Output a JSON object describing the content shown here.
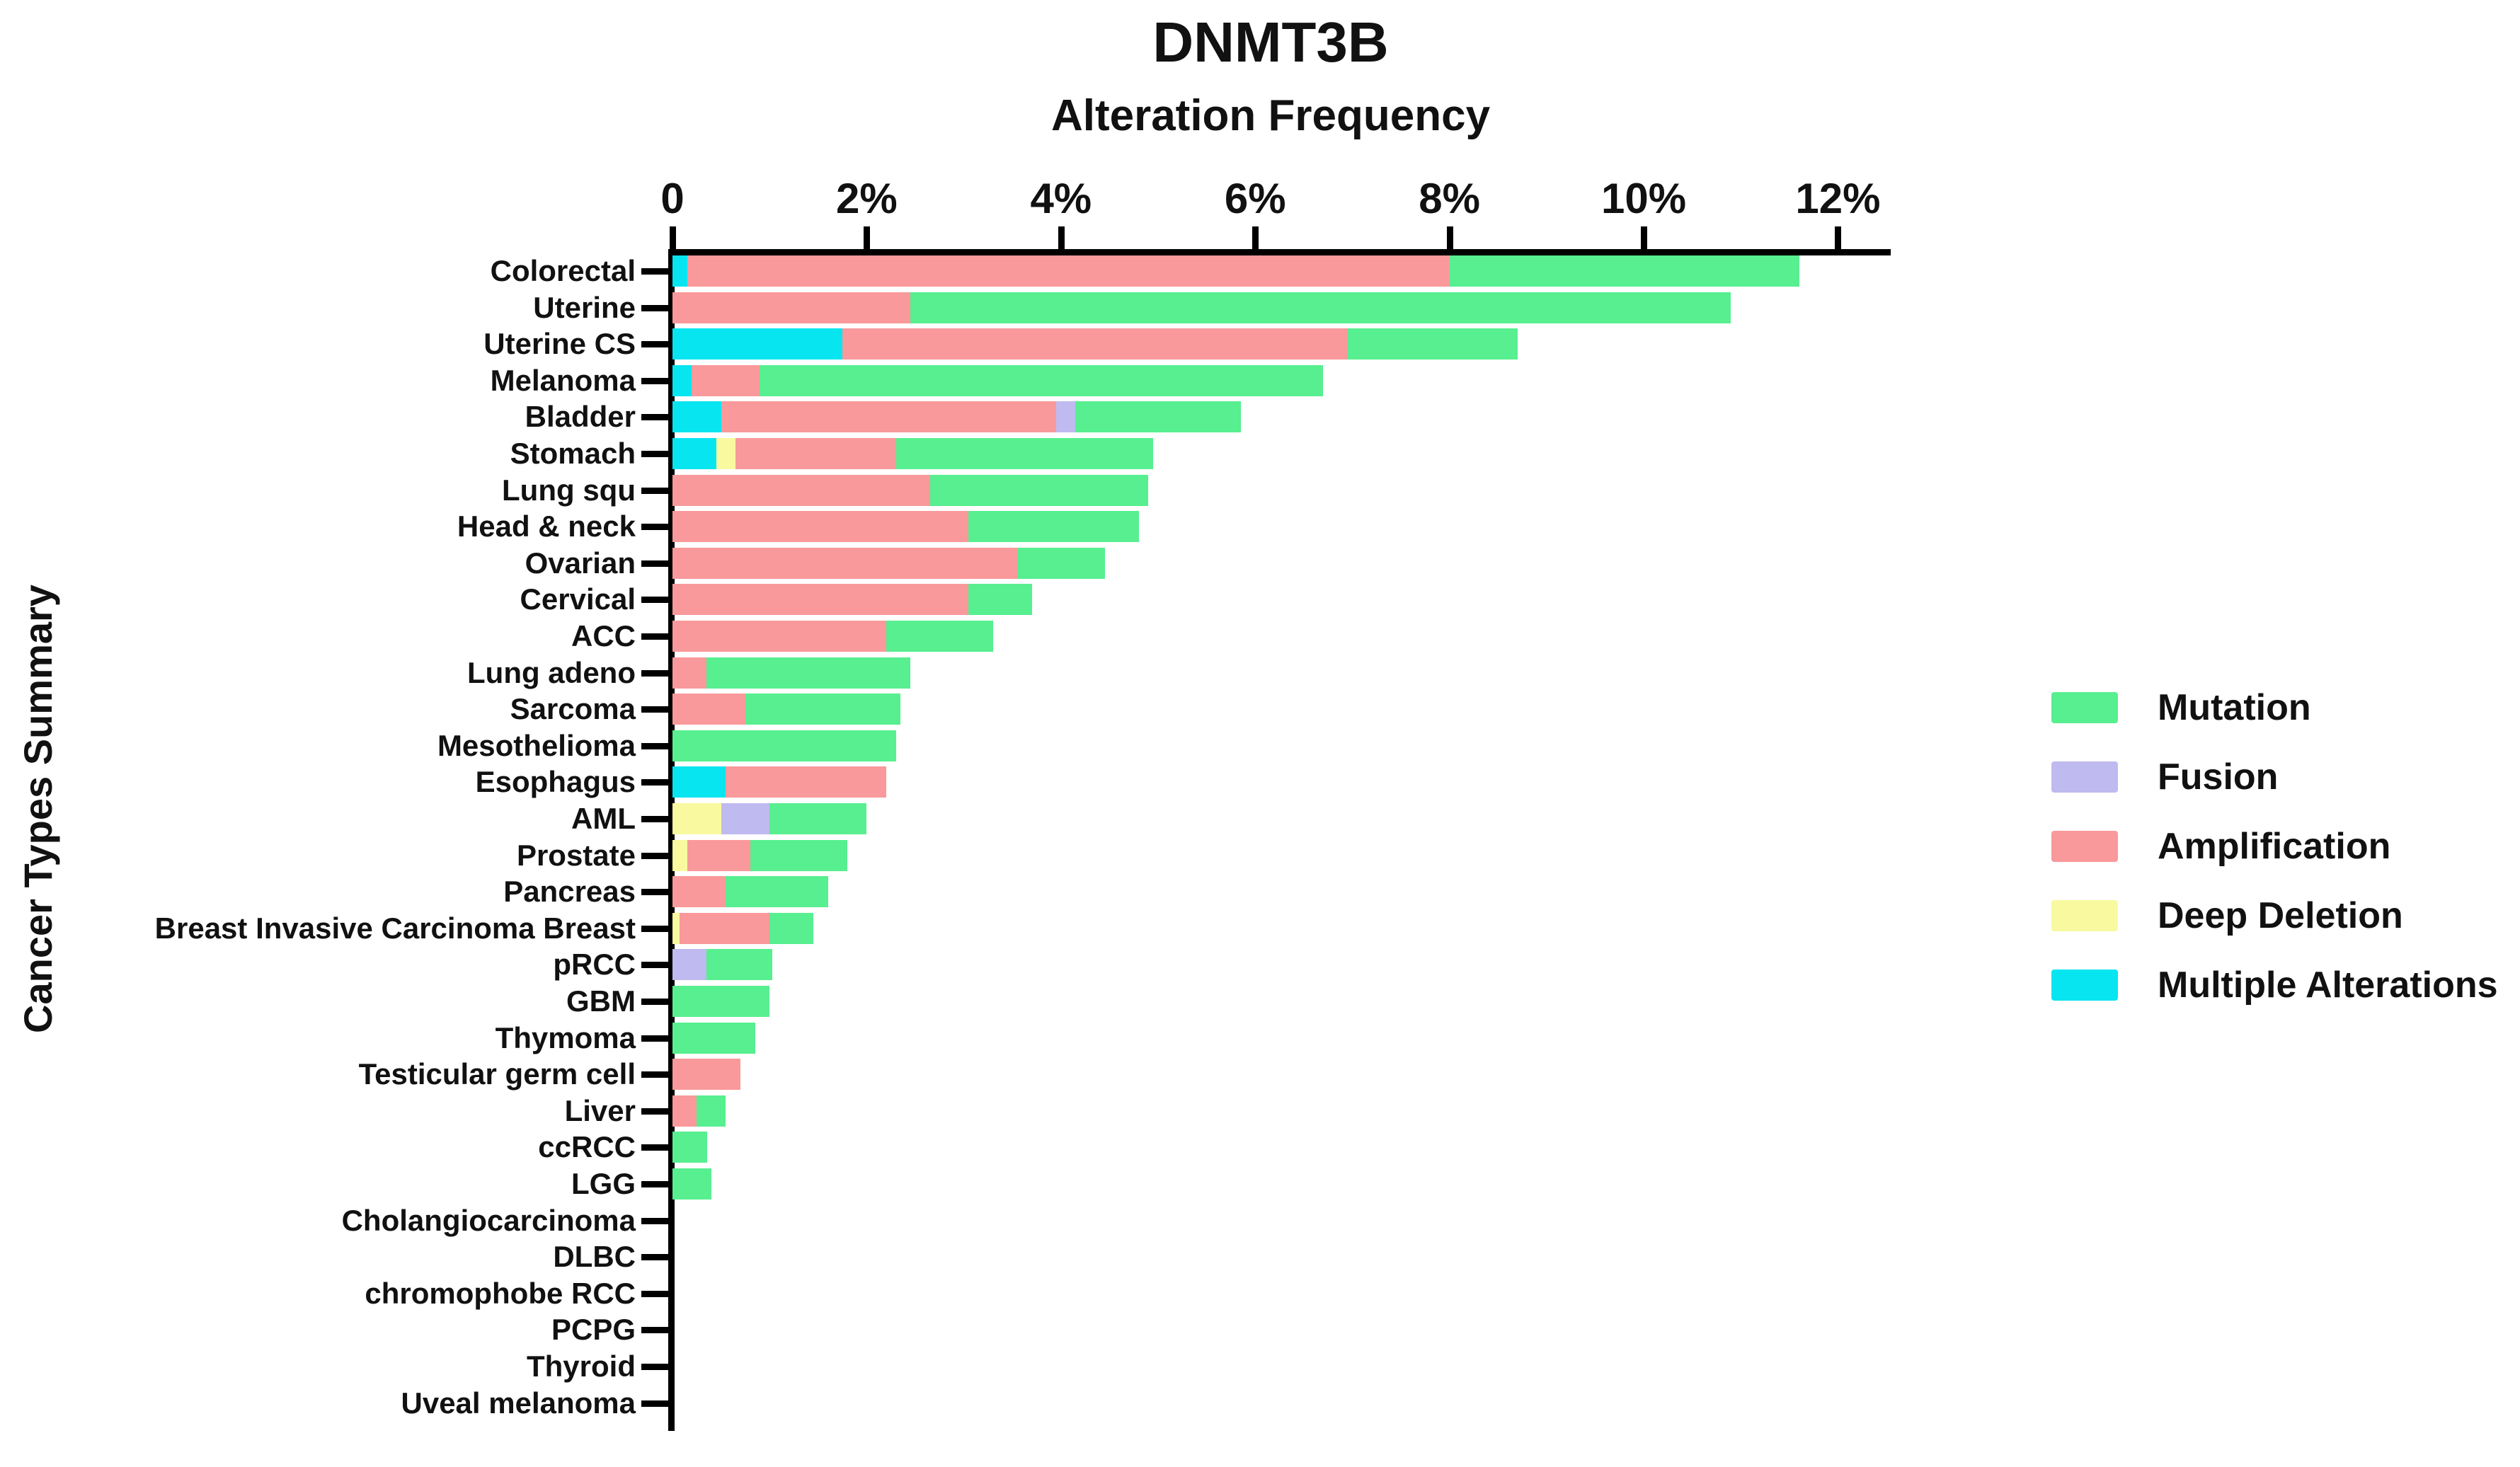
{
  "header": {
    "title": "DNMT3B",
    "subtitle": "Alteration Frequency"
  },
  "y_axis": {
    "label": "Cancer Types Summary"
  },
  "x_axis": {
    "unit": "%",
    "ticks": [
      {
        "label": "0",
        "value": 0
      },
      {
        "label": "2%",
        "value": 2
      },
      {
        "label": "4%",
        "value": 4
      },
      {
        "label": "6%",
        "value": 6
      },
      {
        "label": "8%",
        "value": 8
      },
      {
        "label": "10%",
        "value": 10
      },
      {
        "label": "12%",
        "value": 12
      }
    ],
    "axis_end_percent": 12.5
  },
  "colors": {
    "mutation": "#57EF8F",
    "fusion": "#BFBAEF",
    "amplification": "#F9999B",
    "deep_deletion": "#F9F9A0",
    "multiple_alterations": "#06E5F0",
    "axis": "#000000",
    "text": "#111111"
  },
  "legend": {
    "items": [
      {
        "key": "mutation",
        "label": "Mutation"
      },
      {
        "key": "fusion",
        "label": "Fusion"
      },
      {
        "key": "amplification",
        "label": "Amplification"
      },
      {
        "key": "deep_deletion",
        "label": "Deep Deletion"
      },
      {
        "key": "multiple_alterations",
        "label": "Multiple Alterations"
      }
    ]
  },
  "chart_data": {
    "type": "bar",
    "stacked": true,
    "orientation": "horizontal",
    "title": "DNMT3B",
    "subtitle": "Alteration Frequency",
    "ylabel": "Cancer Types Summary",
    "xlim": [
      0,
      12.5
    ],
    "xticks_percent": [
      0,
      2,
      4,
      6,
      8,
      10,
      12
    ],
    "grid": false,
    "legend_position": "right",
    "value_unit": "percent_altered_cases",
    "rows": [
      {
        "category": "Colorectal",
        "segments": [
          {
            "type": "multiple_alterations",
            "value": 0.15
          },
          {
            "type": "amplification",
            "value": 7.85
          },
          {
            "type": "mutation",
            "value": 3.6
          }
        ]
      },
      {
        "category": "Uterine",
        "segments": [
          {
            "type": "amplification",
            "value": 2.45
          },
          {
            "type": "mutation",
            "value": 8.45
          }
        ]
      },
      {
        "category": "Uterine CS",
        "segments": [
          {
            "type": "multiple_alterations",
            "value": 1.75
          },
          {
            "type": "amplification",
            "value": 5.2
          },
          {
            "type": "mutation",
            "value": 1.75
          }
        ]
      },
      {
        "category": "Melanoma",
        "segments": [
          {
            "type": "multiple_alterations",
            "value": 0.2
          },
          {
            "type": "amplification",
            "value": 0.7
          },
          {
            "type": "mutation",
            "value": 5.8
          }
        ]
      },
      {
        "category": "Bladder",
        "segments": [
          {
            "type": "multiple_alterations",
            "value": 0.5
          },
          {
            "type": "amplification",
            "value": 3.45
          },
          {
            "type": "fusion",
            "value": 0.2
          },
          {
            "type": "mutation",
            "value": 1.7
          }
        ]
      },
      {
        "category": "Stomach",
        "segments": [
          {
            "type": "multiple_alterations",
            "value": 0.45
          },
          {
            "type": "deep_deletion",
            "value": 0.2
          },
          {
            "type": "amplification",
            "value": 1.65
          },
          {
            "type": "mutation",
            "value": 2.65
          }
        ]
      },
      {
        "category": "Lung squ",
        "segments": [
          {
            "type": "amplification",
            "value": 2.65
          },
          {
            "type": "mutation",
            "value": 2.25
          }
        ]
      },
      {
        "category": "Head & neck",
        "segments": [
          {
            "type": "amplification",
            "value": 3.05
          },
          {
            "type": "mutation",
            "value": 1.75
          }
        ]
      },
      {
        "category": "Ovarian",
        "segments": [
          {
            "type": "amplification",
            "value": 3.55
          },
          {
            "type": "mutation",
            "value": 0.9
          }
        ]
      },
      {
        "category": "Cervical",
        "segments": [
          {
            "type": "amplification",
            "value": 3.05
          },
          {
            "type": "mutation",
            "value": 0.65
          }
        ]
      },
      {
        "category": "ACC",
        "segments": [
          {
            "type": "amplification",
            "value": 2.2
          },
          {
            "type": "mutation",
            "value": 1.1
          }
        ]
      },
      {
        "category": "Lung adeno",
        "segments": [
          {
            "type": "amplification",
            "value": 0.35
          },
          {
            "type": "mutation",
            "value": 2.1
          }
        ]
      },
      {
        "category": "Sarcoma",
        "segments": [
          {
            "type": "amplification",
            "value": 0.75
          },
          {
            "type": "mutation",
            "value": 1.6
          }
        ]
      },
      {
        "category": "Mesothelioma",
        "segments": [
          {
            "type": "mutation",
            "value": 2.3
          }
        ]
      },
      {
        "category": "Esophagus",
        "segments": [
          {
            "type": "multiple_alterations",
            "value": 0.55
          },
          {
            "type": "amplification",
            "value": 1.65
          }
        ]
      },
      {
        "category": "AML",
        "segments": [
          {
            "type": "deep_deletion",
            "value": 0.5
          },
          {
            "type": "fusion",
            "value": 0.5
          },
          {
            "type": "mutation",
            "value": 1.0
          }
        ]
      },
      {
        "category": "Prostate",
        "segments": [
          {
            "type": "deep_deletion",
            "value": 0.15
          },
          {
            "type": "amplification",
            "value": 0.65
          },
          {
            "type": "mutation",
            "value": 1.0
          }
        ]
      },
      {
        "category": "Pancreas",
        "segments": [
          {
            "type": "amplification",
            "value": 0.55
          },
          {
            "type": "mutation",
            "value": 1.05
          }
        ]
      },
      {
        "category": "Breast Invasive Carcinoma Breast",
        "segments": [
          {
            "type": "deep_deletion",
            "value": 0.07
          },
          {
            "type": "amplification",
            "value": 0.93
          },
          {
            "type": "mutation",
            "value": 0.45
          }
        ]
      },
      {
        "category": "pRCC",
        "segments": [
          {
            "type": "fusion",
            "value": 0.35
          },
          {
            "type": "mutation",
            "value": 0.68
          }
        ]
      },
      {
        "category": "GBM",
        "segments": [
          {
            "type": "mutation",
            "value": 1.0
          }
        ]
      },
      {
        "category": "Thymoma",
        "segments": [
          {
            "type": "mutation",
            "value": 0.85
          }
        ]
      },
      {
        "category": "Testicular germ cell",
        "segments": [
          {
            "type": "amplification",
            "value": 0.7
          }
        ]
      },
      {
        "category": "Liver",
        "segments": [
          {
            "type": "amplification",
            "value": 0.25
          },
          {
            "type": "mutation",
            "value": 0.3
          }
        ]
      },
      {
        "category": "ccRCC",
        "segments": [
          {
            "type": "mutation",
            "value": 0.36
          }
        ]
      },
      {
        "category": "LGG",
        "segments": [
          {
            "type": "mutation",
            "value": 0.4
          }
        ]
      },
      {
        "category": "Cholangiocarcinoma",
        "segments": []
      },
      {
        "category": "DLBC",
        "segments": []
      },
      {
        "category": "chromophobe RCC",
        "segments": []
      },
      {
        "category": "PCPG",
        "segments": []
      },
      {
        "category": "Thyroid",
        "segments": []
      },
      {
        "category": "Uveal melanoma",
        "segments": []
      }
    ]
  }
}
